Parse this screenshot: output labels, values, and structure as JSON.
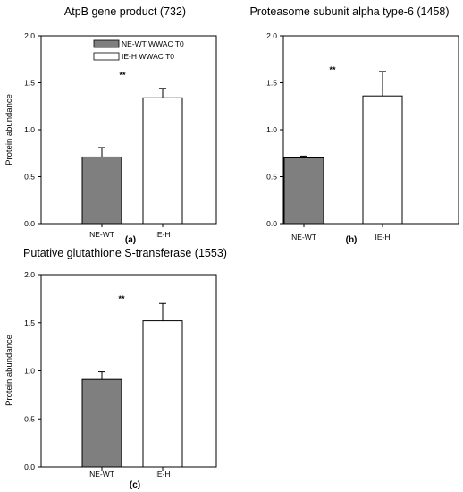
{
  "chart_data": [
    {
      "type": "bar",
      "title": "AtpB gene product (732)",
      "ylabel": "Protein abundance",
      "xlabel": "",
      "panel_label": "(a)",
      "significance": "**",
      "categories": [
        "NE-WT",
        "IE-H"
      ],
      "values": [
        0.71,
        1.34
      ],
      "errors": [
        0.1,
        0.1
      ],
      "ylim": [
        0,
        2.0
      ],
      "yticks": [
        "0.0",
        "0.5",
        "1.0",
        "1.5",
        "2.0"
      ],
      "legend": {
        "position": "top-left",
        "entries": [
          "NE-WT WWAC T0",
          "IE-H WWAC T0"
        ]
      }
    },
    {
      "type": "bar",
      "title": "Proteasome subunit alpha type-6 (1458)",
      "ylabel": "",
      "xlabel": "",
      "panel_label": "(b)",
      "significance": "**",
      "categories": [
        "NE-WT",
        "IE-H"
      ],
      "values": [
        0.7,
        1.36
      ],
      "errors": [
        0.02,
        0.26
      ],
      "ylim": [
        0,
        2.0
      ],
      "yticks": [
        "0.0",
        "0.5",
        "1.0",
        "1.5",
        "2.0"
      ]
    },
    {
      "type": "bar",
      "title": "Putative glutathione S-transferase (1553)",
      "ylabel": "Protein abundance",
      "xlabel": "",
      "panel_label": "(c)",
      "significance": "**",
      "categories": [
        "NE-WT",
        "IE-H"
      ],
      "values": [
        0.91,
        1.52
      ],
      "errors": [
        0.08,
        0.18
      ],
      "ylim": [
        0,
        2.0
      ],
      "yticks": [
        "0.0",
        "0.5",
        "1.0",
        "1.5",
        "2.0"
      ]
    }
  ],
  "colors": {
    "series_1_fill": "#7f7f7f",
    "series_2_fill": "#ffffff",
    "stroke": "#000000"
  }
}
